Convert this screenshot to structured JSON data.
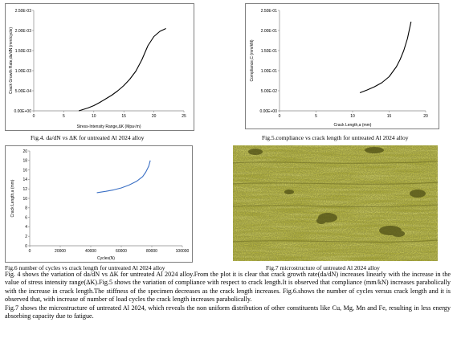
{
  "chart_data": [
    {
      "type": "line",
      "title": "",
      "xlabel": "Stress-Intensity Range,ΔK (Mpa√m)",
      "ylabel": "Crack Growth Rate,da/dN (mm/cycle)",
      "xlim": [
        0,
        25
      ],
      "ylim": [
        0,
        0.0025
      ],
      "x_ticks": [
        "0",
        "5",
        "10",
        "15",
        "20",
        "25"
      ],
      "y_ticks": [
        "0.00E+00",
        "5.00E-04",
        "1.00E-03",
        "1.50E-03",
        "2.00E-03",
        "2.50E-03"
      ],
      "grid": false,
      "series": [
        {
          "x": [
            7.5,
            9,
            10,
            11,
            12,
            13,
            14,
            15,
            16,
            17,
            18,
            19,
            20,
            21,
            22
          ],
          "y": [
            0.0,
            7e-05,
            0.00013,
            0.00021,
            0.0003,
            0.00039,
            0.0005,
            0.00063,
            0.00079,
            0.00099,
            0.00127,
            0.00162,
            0.00185,
            0.00198,
            0.00205
          ]
        }
      ]
    },
    {
      "type": "line",
      "title": "",
      "xlabel": "Crack Length,a (mm)",
      "ylabel": "Compliance,C (mm/kN)",
      "xlim": [
        0,
        20
      ],
      "ylim": [
        0,
        0.25
      ],
      "x_ticks": [
        "0",
        "5",
        "10",
        "15",
        "20"
      ],
      "y_ticks": [
        "0.00E+00",
        "5.00E-02",
        "1.00E-01",
        "1.50E-01",
        "2.00E-01",
        "2.50E-01"
      ],
      "grid": false,
      "series": [
        {
          "x": [
            11,
            12,
            13,
            14,
            15,
            16,
            16.5,
            17,
            17.5,
            18
          ],
          "y": [
            0.045,
            0.052,
            0.06,
            0.07,
            0.085,
            0.11,
            0.128,
            0.15,
            0.18,
            0.222
          ]
        }
      ]
    },
    {
      "type": "line",
      "title": "",
      "xlabel": "Cycles(N)",
      "ylabel": "Crack Length,a (mm)",
      "xlim": [
        0,
        100000
      ],
      "ylim": [
        0,
        20
      ],
      "x_ticks": [
        "0",
        "20000",
        "40000",
        "60000",
        "80000",
        "100000"
      ],
      "y_ticks": [
        "0",
        "2",
        "4",
        "6",
        "8",
        "10",
        "12",
        "14",
        "16",
        "18",
        "20"
      ],
      "grid": false,
      "series": [
        {
          "x": [
            44000,
            50000,
            55000,
            60000,
            65000,
            70000,
            74000,
            76000,
            78000,
            79000
          ],
          "y": [
            11.2,
            11.5,
            11.8,
            12.2,
            12.8,
            13.6,
            14.6,
            15.5,
            16.8,
            18.0
          ]
        }
      ]
    }
  ],
  "captions": {
    "fig4": "Fig.4. da/dN vs ΔK for untreated Al 2024 alloy",
    "fig5": "Fig.5.compliance vs crack length for untreated Al 2024 alloy",
    "fig6": "Fig.6 number of cycles vs crack length for untreated Al 2024 alloy",
    "fig7": "Fig.7 microstructure of untreated Al 2024 alloy"
  },
  "body": {
    "p1": "Fig. 4 shows the variation of da/dN vs ΔK for untreated Al 2024 alloy.From the plot it is clear that crack growth rate(da/dN) increases linearly with the increase in the value of stress intensity range(ΔK).Fig.5 shows the variation of compliance with respect to crack length.It is observed that compliance (mm/kN) increases parabolically with the increase in crack length.The stiffness of the specimen decreases as the crack length increases. Fig.6.shows the number of cycles versus crack length and it is observed that, with increase of number of load cycles the crack length increases parabolically.",
    "p2": "Fig.7 shows the microstructure of untreated Al 2024, which reveals the non uniform distribution of other constituents like Cu, Mg, Mn and Fe, resulting in less energy absorbing capacity due to fatigue."
  },
  "colors": {
    "curve": "#000000",
    "curve_fig6": "#3a6fc4",
    "micro_base": "#9a9a2e"
  }
}
